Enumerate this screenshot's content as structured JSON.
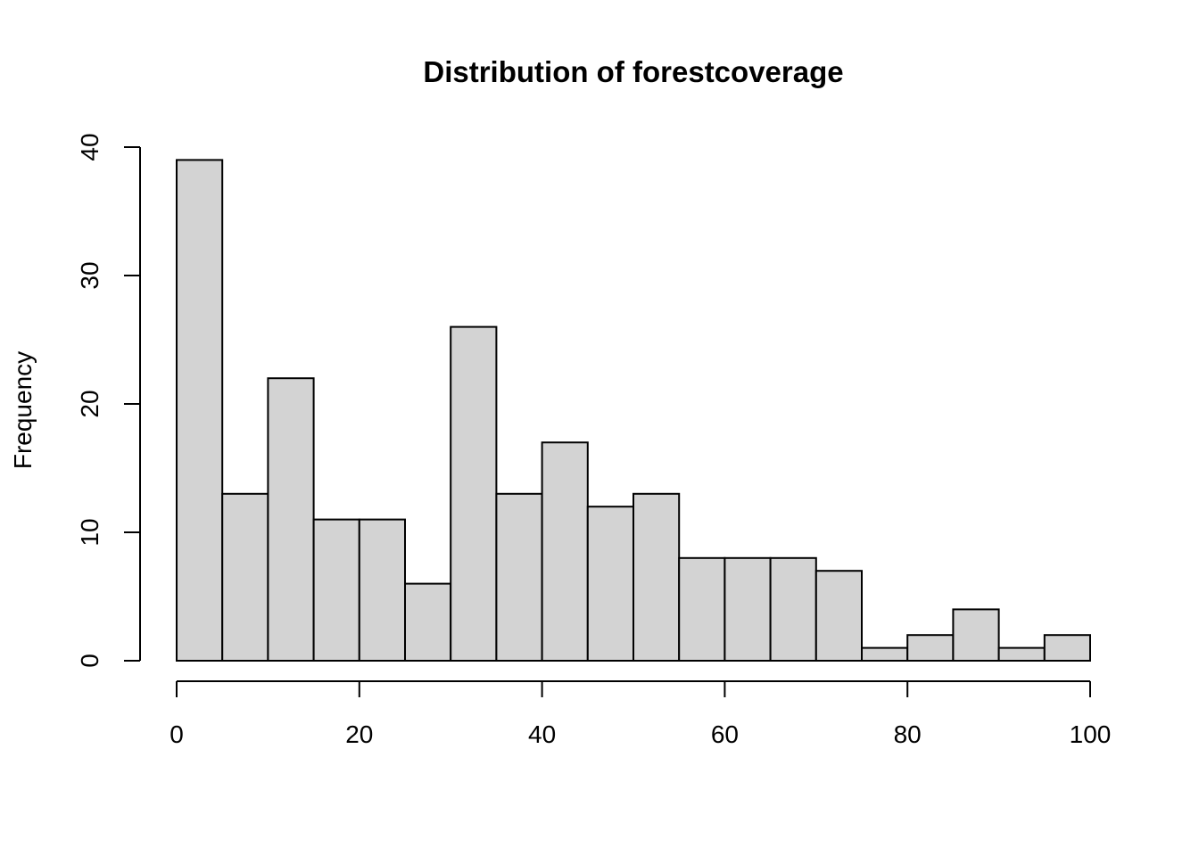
{
  "chart_data": {
    "type": "bar",
    "title": "Distribution of forestcoverage",
    "xlabel": "",
    "ylabel": "Frequency",
    "bin_edges": [
      0,
      5,
      10,
      15,
      20,
      25,
      30,
      35,
      40,
      45,
      50,
      55,
      60,
      65,
      70,
      75,
      80,
      85,
      90,
      95,
      100
    ],
    "values": [
      39,
      13,
      22,
      11,
      11,
      6,
      26,
      13,
      17,
      12,
      13,
      8,
      8,
      8,
      7,
      1,
      2,
      4,
      1,
      2
    ],
    "xlim": [
      0,
      100
    ],
    "ylim": [
      0,
      40
    ],
    "x_ticks": [
      "0",
      "20",
      "40",
      "60",
      "80",
      "100"
    ],
    "y_ticks": [
      "0",
      "10",
      "20",
      "30",
      "40"
    ],
    "grid": false,
    "bar_fill": "#d3d3d3",
    "bar_stroke": "#000000"
  }
}
